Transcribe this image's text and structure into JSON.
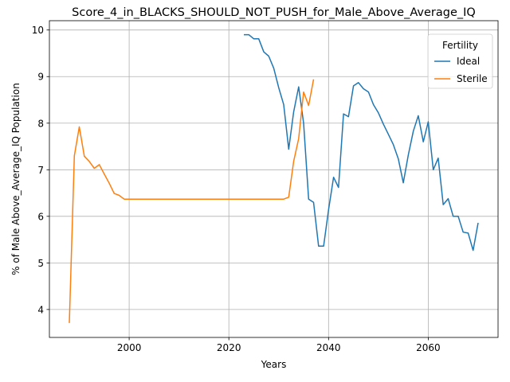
{
  "chart_data": {
    "type": "line",
    "title": "Score_4_in_BLACKS_SHOULD_NOT_PUSH_for_Male_Above_Average_IQ",
    "xlabel": "Years",
    "ylabel": "% of Male Above_Average_IQ Population",
    "xlim": [
      1984,
      2074
    ],
    "ylim": [
      3.4,
      10.2
    ],
    "xticks": [
      2000,
      2020,
      2040,
      2060
    ],
    "yticks": [
      4,
      5,
      6,
      7,
      8,
      9,
      10
    ],
    "grid": true,
    "legend": {
      "title": "Fertility",
      "placement": "top-right"
    },
    "series": [
      {
        "name": "Ideal",
        "color": "#1f77b4",
        "x": [
          2023,
          2024,
          2025,
          2026,
          2027,
          2028,
          2029,
          2030,
          2031,
          2032,
          2033,
          2034,
          2035,
          2036,
          2037,
          2038,
          2039,
          2040,
          2041,
          2042,
          2043,
          2044,
          2045,
          2046,
          2047,
          2048,
          2049,
          2050,
          2051,
          2052,
          2053,
          2054,
          2055,
          2056,
          2057,
          2058,
          2059,
          2060,
          2061,
          2062,
          2063,
          2064,
          2065,
          2066,
          2067,
          2068,
          2069,
          2070
        ],
        "y": [
          9.9,
          9.9,
          9.81,
          9.81,
          9.53,
          9.44,
          9.18,
          8.76,
          8.4,
          7.44,
          8.24,
          8.78,
          8.0,
          6.37,
          6.3,
          5.36,
          5.36,
          6.14,
          6.84,
          6.62,
          8.2,
          8.14,
          8.8,
          8.87,
          8.74,
          8.67,
          8.4,
          8.22,
          7.98,
          7.76,
          7.54,
          7.23,
          6.72,
          7.32,
          7.83,
          8.16,
          7.6,
          8.03,
          7.0,
          7.25,
          6.25,
          6.38,
          6.0,
          6.0,
          5.66,
          5.64,
          5.27,
          5.86
        ]
      },
      {
        "name": "Sterile",
        "color": "#ff7f0e",
        "x": [
          1988,
          1989,
          1990,
          1991,
          1992,
          1993,
          1994,
          1995,
          1996,
          1997,
          1998,
          1999,
          2000,
          2005,
          2010,
          2015,
          2020,
          2025,
          2030,
          2031,
          2032,
          2033,
          2034,
          2035,
          2036,
          2037
        ],
        "y": [
          3.71,
          7.3,
          7.92,
          7.29,
          7.18,
          7.03,
          7.11,
          6.91,
          6.71,
          6.49,
          6.45,
          6.37,
          6.37,
          6.37,
          6.37,
          6.37,
          6.37,
          6.37,
          6.37,
          6.37,
          6.41,
          7.18,
          7.67,
          8.67,
          8.38,
          8.94
        ]
      }
    ]
  }
}
